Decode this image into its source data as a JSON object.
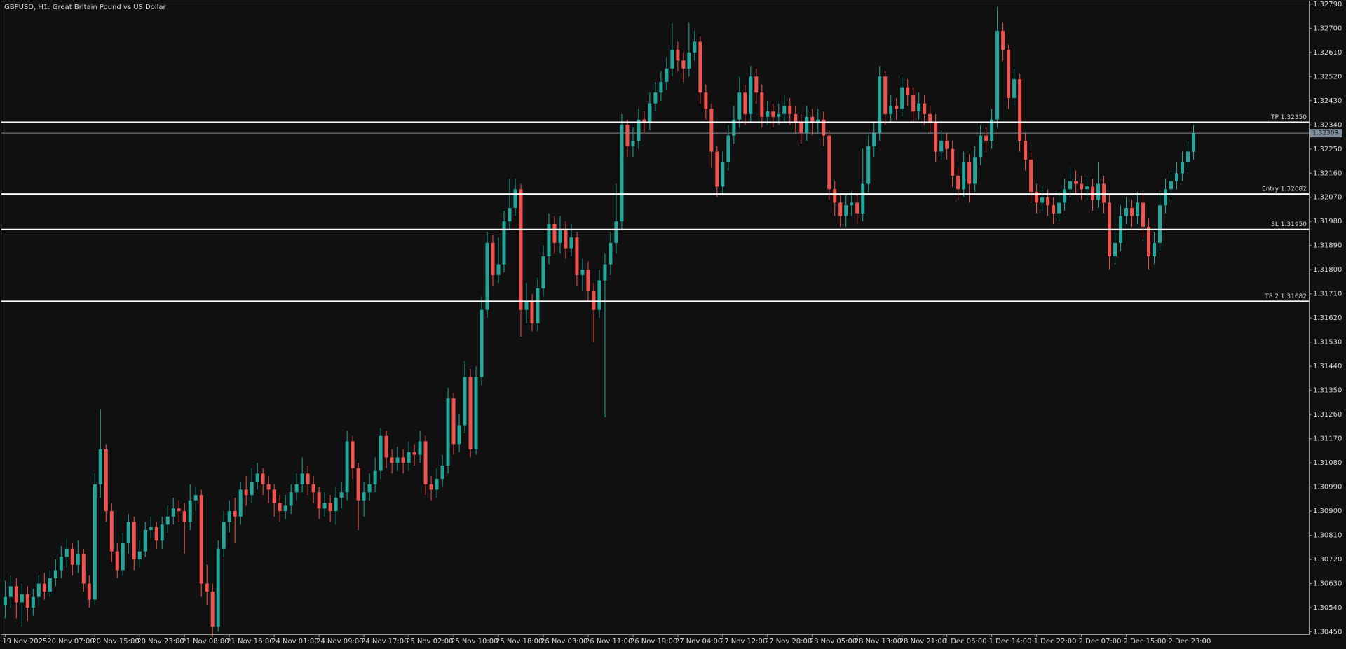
{
  "chart_data": {
    "type": "candlestick",
    "title": "GBPUSD, H1:  Great Britain Pound vs US Dollar",
    "up_color": "#26a69a",
    "down_color": "#ef5350",
    "level_color": "#ffffff",
    "last_color": "#7f8c99",
    "categories": [
      "19 Nov 2025",
      null,
      null,
      null,
      null,
      null,
      null,
      null,
      "20 Nov 07:00",
      null,
      null,
      null,
      null,
      null,
      null,
      null,
      "20 Nov 15:00",
      null,
      null,
      null,
      null,
      null,
      null,
      null,
      "20 Nov 23:00",
      null,
      null,
      null,
      null,
      null,
      null,
      null,
      "21 Nov 08:00",
      null,
      null,
      null,
      null,
      null,
      null,
      null,
      "21 Nov 16:00",
      null,
      null,
      null,
      null,
      null,
      null,
      null,
      "24 Nov 01:00",
      null,
      null,
      null,
      null,
      null,
      null,
      null,
      "24 Nov 09:00",
      null,
      null,
      null,
      null,
      null,
      null,
      null,
      "24 Nov 17:00",
      null,
      null,
      null,
      null,
      null,
      null,
      null,
      "25 Nov 02:00",
      null,
      null,
      null,
      null,
      null,
      null,
      null,
      "25 Nov 10:00",
      null,
      null,
      null,
      null,
      null,
      null,
      null,
      "25 Nov 18:00",
      null,
      null,
      null,
      null,
      null,
      null,
      null,
      "26 Nov 03:00",
      null,
      null,
      null,
      null,
      null,
      null,
      null,
      "26 Nov 11:00",
      null,
      null,
      null,
      null,
      null,
      null,
      null,
      "26 Nov 19:00",
      null,
      null,
      null,
      null,
      null,
      null,
      null,
      "27 Nov 04:00",
      null,
      null,
      null,
      null,
      null,
      null,
      null,
      "27 Nov 12:00",
      null,
      null,
      null,
      null,
      null,
      null,
      null,
      "27 Nov 20:00",
      null,
      null,
      null,
      null,
      null,
      null,
      null,
      "28 Nov 05:00",
      null,
      null,
      null,
      null,
      null,
      null,
      null,
      "28 Nov 13:00",
      null,
      null,
      null,
      null,
      null,
      null,
      null,
      "28 Nov 21:00",
      null,
      null,
      null,
      null,
      null,
      null,
      null,
      "1 Dec 06:00",
      null,
      null,
      null,
      null,
      null,
      null,
      null,
      "1 Dec 14:00",
      null,
      null,
      null,
      null,
      null,
      null,
      null,
      "1 Dec 22:00",
      null,
      null,
      null,
      null,
      null,
      null,
      null,
      "2 Dec 07:00",
      null,
      null,
      null,
      null,
      null,
      null,
      null,
      "2 Dec 15:00",
      null,
      null,
      null,
      null,
      null,
      null,
      null,
      "2 Dec 23:00",
      null,
      null,
      null,
      null
    ],
    "open": [
      1.3055,
      1.3058,
      1.3062,
      1.3056,
      1.3059,
      1.3054,
      1.3058,
      1.3063,
      1.306,
      1.3065,
      1.3068,
      1.3073,
      1.3076,
      1.307,
      1.3074,
      1.3063,
      1.3057,
      1.31,
      1.3113,
      1.309,
      1.3075,
      1.3068,
      1.3078,
      1.3086,
      1.3072,
      1.3075,
      1.3083,
      1.3084,
      1.3079,
      1.3085,
      1.3088,
      1.3091,
      1.309,
      1.3086,
      1.3094,
      1.3096,
      1.3063,
      1.306,
      1.3047,
      1.3076,
      1.3086,
      1.309,
      1.3088,
      1.3098,
      1.3096,
      1.3101,
      1.3104,
      1.31,
      1.3098,
      1.3093,
      1.309,
      1.3092,
      1.3097,
      1.31,
      1.3104,
      1.31,
      1.3097,
      1.3091,
      1.3093,
      1.309,
      1.3095,
      1.3097,
      1.3116,
      1.3106,
      1.3094,
      1.3097,
      1.31,
      1.3105,
      1.3118,
      1.311,
      1.3108,
      1.311,
      1.3108,
      1.3112,
      1.3111,
      1.3116,
      1.31,
      1.3098,
      1.3102,
      1.3107,
      1.3132,
      1.3115,
      1.3122,
      1.314,
      1.3113,
      1.314,
      1.3165,
      1.319,
      1.3178,
      1.3182,
      1.3198,
      1.3203,
      1.321,
      1.3165,
      1.3168,
      1.316,
      1.3173,
      1.3185,
      1.3197,
      1.319,
      1.3195,
      1.3188,
      1.3192,
      1.3178,
      1.318,
      1.3172,
      1.3165,
      1.3176,
      1.3182,
      1.319,
      1.3198,
      1.3234,
      1.3226,
      1.3228,
      1.3236,
      1.3235,
      1.3242,
      1.3246,
      1.325,
      1.3255,
      1.3262,
      1.3258,
      1.3255,
      1.3261,
      1.3265,
      1.3246,
      1.324,
      1.3224,
      1.3211,
      1.322,
      1.323,
      1.3236,
      1.3246,
      1.3238,
      1.3252,
      1.3246,
      1.3237,
      1.3239,
      1.3237,
      1.3238,
      1.3241,
      1.3238,
      1.3235,
      1.3231,
      1.3237,
      1.3235,
      1.3236,
      1.323,
      1.321,
      1.3205,
      1.32,
      1.3204,
      1.3205,
      1.3201,
      1.3212,
      1.3226,
      1.3231,
      1.3252,
      1.3238,
      1.3241,
      1.324,
      1.3248,
      1.3245,
      1.3239,
      1.3242,
      1.3238,
      1.3235,
      1.3224,
      1.3228,
      1.3225,
      1.3215,
      1.321,
      1.322,
      1.3212,
      1.3222,
      1.323,
      1.3228,
      1.3236,
      1.3269,
      1.3262,
      1.3244,
      1.3251,
      1.3228,
      1.3221,
      1.3209,
      1.3205,
      1.3207,
      1.3204,
      1.3201,
      1.3205,
      1.321,
      1.3213,
      1.3212,
      1.321,
      1.3211,
      1.3206,
      1.3212,
      1.3205,
      1.3185,
      1.319,
      1.32,
      1.3203,
      1.32,
      1.3205,
      1.3196,
      1.3185,
      1.319,
      1.3204,
      1.321,
      1.3213,
      1.3216,
      1.322,
      1.3224
    ],
    "high": [
      1.3064,
      1.3066,
      1.3065,
      1.3063,
      1.3062,
      1.3061,
      1.3066,
      1.3067,
      1.3068,
      1.3072,
      1.3077,
      1.308,
      1.3078,
      1.3079,
      1.3076,
      1.3066,
      1.3104,
      1.3128,
      1.3115,
      1.3093,
      1.3078,
      1.3082,
      1.3089,
      1.3088,
      1.3079,
      1.3086,
      1.3088,
      1.3086,
      1.3088,
      1.3092,
      1.3095,
      1.3094,
      1.3093,
      1.31,
      1.3099,
      1.3098,
      1.307,
      1.3063,
      1.3079,
      1.309,
      1.3094,
      1.3095,
      1.3101,
      1.3103,
      1.3106,
      1.3108,
      1.3106,
      1.3103,
      1.31,
      1.3096,
      1.3096,
      1.31,
      1.3104,
      1.311,
      1.3107,
      1.3103,
      1.3099,
      1.3097,
      1.3096,
      1.3099,
      1.3101,
      1.312,
      1.3118,
      1.3108,
      1.3101,
      1.3104,
      1.311,
      1.3121,
      1.312,
      1.3113,
      1.3114,
      1.3113,
      1.3116,
      1.3115,
      1.312,
      1.3118,
      1.3103,
      1.3106,
      1.3111,
      1.3136,
      1.3134,
      1.3126,
      1.3146,
      1.3143,
      1.3144,
      1.317,
      1.3194,
      1.3193,
      1.3192,
      1.3202,
      1.3214,
      1.3214,
      1.3212,
      1.3175,
      1.3171,
      1.3177,
      1.3189,
      1.3201,
      1.32,
      1.32,
      1.3198,
      1.3197,
      1.3194,
      1.3184,
      1.3183,
      1.3175,
      1.318,
      1.3186,
      1.3194,
      1.3212,
      1.3238,
      1.3236,
      1.3233,
      1.324,
      1.3239,
      1.3246,
      1.325,
      1.3254,
      1.3259,
      1.3272,
      1.3265,
      1.3261,
      1.3272,
      1.3269,
      1.3267,
      1.3249,
      1.3242,
      1.3226,
      1.3224,
      1.3234,
      1.3241,
      1.3252,
      1.3249,
      1.3256,
      1.3255,
      1.3249,
      1.3243,
      1.3242,
      1.3242,
      1.3245,
      1.3244,
      1.3241,
      1.3238,
      1.3241,
      1.324,
      1.324,
      1.3239,
      1.3232,
      1.3213,
      1.3208,
      1.3208,
      1.3209,
      1.3208,
      1.3225,
      1.323,
      1.3235,
      1.3256,
      1.3254,
      1.3245,
      1.3244,
      1.3252,
      1.3251,
      1.3248,
      1.3246,
      1.3245,
      1.3241,
      1.3238,
      1.3232,
      1.3231,
      1.3228,
      1.3218,
      1.3224,
      1.3223,
      1.3226,
      1.3234,
      1.3233,
      1.324,
      1.3278,
      1.3272,
      1.3264,
      1.3255,
      1.3253,
      1.3231,
      1.3224,
      1.3212,
      1.3211,
      1.321,
      1.3207,
      1.3209,
      1.3214,
      1.3218,
      1.3217,
      1.3215,
      1.3215,
      1.3214,
      1.322,
      1.3215,
      1.3208,
      1.3195,
      1.3204,
      1.3207,
      1.3206,
      1.3209,
      1.3208,
      1.3199,
      1.3194,
      1.3208,
      1.3214,
      1.3217,
      1.322,
      1.3224,
      1.3228,
      1.3234
    ],
    "low": [
      1.305,
      1.3054,
      1.305,
      1.3047,
      1.3049,
      1.3051,
      1.3055,
      1.3057,
      1.3058,
      1.3062,
      1.3065,
      1.3069,
      1.3066,
      1.3067,
      1.306,
      1.3054,
      1.3055,
      1.3095,
      1.3086,
      1.3071,
      1.3065,
      1.3066,
      1.3074,
      1.3068,
      1.3069,
      1.3073,
      1.308,
      1.3076,
      1.3076,
      1.3082,
      1.3085,
      1.3086,
      1.3074,
      1.3083,
      1.309,
      1.3058,
      1.3055,
      1.3043,
      1.3045,
      1.3073,
      1.3082,
      1.3078,
      1.3085,
      1.3092,
      1.3093,
      1.3098,
      1.3096,
      1.3093,
      1.3088,
      1.3086,
      1.3087,
      1.3089,
      1.3094,
      1.3097,
      1.3096,
      1.3093,
      1.3087,
      1.3088,
      1.3086,
      1.3085,
      1.3091,
      1.3094,
      1.3102,
      1.3083,
      1.3088,
      1.3094,
      1.3097,
      1.3102,
      1.3106,
      1.3104,
      1.3105,
      1.3104,
      1.3105,
      1.3107,
      1.3108,
      1.3096,
      1.3094,
      1.3095,
      1.3099,
      1.3104,
      1.3111,
      1.3112,
      1.3119,
      1.311,
      1.3111,
      1.3137,
      1.3162,
      1.3174,
      1.3175,
      1.3179,
      1.3195,
      1.32,
      1.3155,
      1.316,
      1.3157,
      1.3157,
      1.317,
      1.3182,
      1.3186,
      1.3186,
      1.3184,
      1.3185,
      1.3174,
      1.3172,
      1.3168,
      1.3153,
      1.3162,
      1.3125,
      1.3178,
      1.3186,
      1.3195,
      1.3222,
      1.3222,
      1.3225,
      1.3231,
      1.3232,
      1.3239,
      1.3243,
      1.3247,
      1.3252,
      1.3254,
      1.325,
      1.3252,
      1.3258,
      1.3242,
      1.3236,
      1.3218,
      1.3207,
      1.3208,
      1.3217,
      1.3227,
      1.3233,
      1.3234,
      1.3235,
      1.3242,
      1.3233,
      1.3234,
      1.3233,
      1.3234,
      1.3235,
      1.3234,
      1.3231,
      1.3227,
      1.3228,
      1.323,
      1.3231,
      1.3226,
      1.3206,
      1.32,
      1.3196,
      1.3196,
      1.32,
      1.3197,
      1.3198,
      1.3209,
      1.3222,
      1.3228,
      1.3234,
      1.3235,
      1.3236,
      1.3237,
      1.3241,
      1.3235,
      1.3236,
      1.3234,
      1.3231,
      1.322,
      1.3221,
      1.3221,
      1.3211,
      1.3206,
      1.3207,
      1.3205,
      1.3209,
      1.3219,
      1.3224,
      1.3225,
      1.3233,
      1.3258,
      1.324,
      1.3241,
      1.3224,
      1.3217,
      1.3205,
      1.3201,
      1.3202,
      1.32,
      1.3197,
      1.3198,
      1.3202,
      1.3207,
      1.3208,
      1.3206,
      1.3206,
      1.3202,
      1.3203,
      1.3201,
      1.318,
      1.3182,
      1.3187,
      1.3197,
      1.3196,
      1.3197,
      1.3192,
      1.318,
      1.3182,
      1.3187,
      1.3201,
      1.3207,
      1.321,
      1.3213,
      1.3217,
      1.3221
    ],
    "close": [
      1.3058,
      1.3062,
      1.3056,
      1.3059,
      1.3054,
      1.3058,
      1.3063,
      1.306,
      1.3065,
      1.3068,
      1.3073,
      1.3076,
      1.307,
      1.3074,
      1.3063,
      1.3057,
      1.31,
      1.3113,
      1.309,
      1.3075,
      1.3068,
      1.3078,
      1.3086,
      1.3072,
      1.3075,
      1.3083,
      1.3084,
      1.3079,
      1.3085,
      1.3088,
      1.3091,
      1.309,
      1.3086,
      1.3094,
      1.3096,
      1.3063,
      1.306,
      1.3047,
      1.3076,
      1.3086,
      1.309,
      1.3088,
      1.3098,
      1.3096,
      1.3101,
      1.3104,
      1.31,
      1.3098,
      1.3093,
      1.309,
      1.3092,
      1.3097,
      1.31,
      1.3104,
      1.31,
      1.3097,
      1.3091,
      1.3093,
      1.309,
      1.3095,
      1.3097,
      1.3116,
      1.3106,
      1.3094,
      1.3097,
      1.31,
      1.3105,
      1.3118,
      1.311,
      1.3108,
      1.311,
      1.3108,
      1.3112,
      1.3111,
      1.3116,
      1.31,
      1.3098,
      1.3102,
      1.3107,
      1.3132,
      1.3115,
      1.3122,
      1.314,
      1.3113,
      1.314,
      1.3165,
      1.319,
      1.3178,
      1.3182,
      1.3198,
      1.3203,
      1.321,
      1.3165,
      1.3168,
      1.316,
      1.3173,
      1.3185,
      1.3197,
      1.319,
      1.3195,
      1.3188,
      1.3192,
      1.3178,
      1.318,
      1.3172,
      1.3165,
      1.3176,
      1.3182,
      1.319,
      1.3198,
      1.3234,
      1.3226,
      1.3228,
      1.3236,
      1.3235,
      1.3242,
      1.3246,
      1.325,
      1.3255,
      1.3262,
      1.3258,
      1.3255,
      1.3261,
      1.3265,
      1.3246,
      1.324,
      1.3224,
      1.3211,
      1.322,
      1.323,
      1.3236,
      1.3246,
      1.3238,
      1.3252,
      1.3246,
      1.3237,
      1.3239,
      1.3237,
      1.3238,
      1.3241,
      1.3238,
      1.3235,
      1.3231,
      1.3237,
      1.3235,
      1.3236,
      1.323,
      1.321,
      1.3205,
      1.32,
      1.3204,
      1.3205,
      1.3201,
      1.3212,
      1.3226,
      1.3231,
      1.3252,
      1.3238,
      1.3241,
      1.324,
      1.3248,
      1.3245,
      1.3239,
      1.3242,
      1.3238,
      1.3235,
      1.3224,
      1.3228,
      1.3225,
      1.3215,
      1.321,
      1.322,
      1.3212,
      1.3222,
      1.323,
      1.3228,
      1.3236,
      1.3269,
      1.3262,
      1.3244,
      1.3251,
      1.3228,
      1.3221,
      1.3209,
      1.3205,
      1.3207,
      1.3204,
      1.3201,
      1.3205,
      1.321,
      1.3213,
      1.3212,
      1.321,
      1.3211,
      1.3206,
      1.3212,
      1.3205,
      1.3185,
      1.319,
      1.32,
      1.3203,
      1.32,
      1.3205,
      1.3196,
      1.3185,
      1.319,
      1.3204,
      1.321,
      1.3213,
      1.3216,
      1.322,
      1.3224,
      1.32309
    ],
    "levels": [
      {
        "label": "TP 1.32350",
        "value": 1.3235
      },
      {
        "label": "Entry 1.32082",
        "value": 1.32082
      },
      {
        "label": "SL 1.31950",
        "value": 1.3195
      },
      {
        "label": "TP 2 1.31682",
        "value": 1.31682
      }
    ],
    "ylim": [
      1.30441,
      1.328
    ],
    "yticks": [
      {
        "value": 1.3279,
        "label": "1.32790"
      },
      {
        "value": 1.327,
        "label": "1.32700"
      },
      {
        "value": 1.3261,
        "label": "1.32610"
      },
      {
        "value": 1.3252,
        "label": "1.32520"
      },
      {
        "value": 1.3243,
        "label": "1.32430"
      },
      {
        "value": 1.3234,
        "label": "1.32340"
      },
      {
        "value": 1.3225,
        "label": "1.32250"
      },
      {
        "value": 1.3216,
        "label": "1.32160"
      },
      {
        "value": 1.3207,
        "label": "1.32070"
      },
      {
        "value": 1.3198,
        "label": "1.31980"
      },
      {
        "value": 1.3189,
        "label": "1.31890"
      },
      {
        "value": 1.318,
        "label": "1.31800"
      },
      {
        "value": 1.3171,
        "label": "1.31710"
      },
      {
        "value": 1.3162,
        "label": "1.31620"
      },
      {
        "value": 1.3153,
        "label": "1.31530"
      },
      {
        "value": 1.3144,
        "label": "1.31440"
      },
      {
        "value": 1.3135,
        "label": "1.31350"
      },
      {
        "value": 1.3126,
        "label": "1.31260"
      },
      {
        "value": 1.3117,
        "label": "1.31170"
      },
      {
        "value": 1.3108,
        "label": "1.31080"
      },
      {
        "value": 1.3099,
        "label": "1.30990"
      },
      {
        "value": 1.309,
        "label": "1.30900"
      },
      {
        "value": 1.3081,
        "label": "1.30810"
      },
      {
        "value": 1.3072,
        "label": "1.30720"
      },
      {
        "value": 1.3063,
        "label": "1.30630"
      },
      {
        "value": 1.3054,
        "label": "1.30540"
      },
      {
        "value": 1.3045,
        "label": "1.30450"
      }
    ],
    "grid": false
  }
}
